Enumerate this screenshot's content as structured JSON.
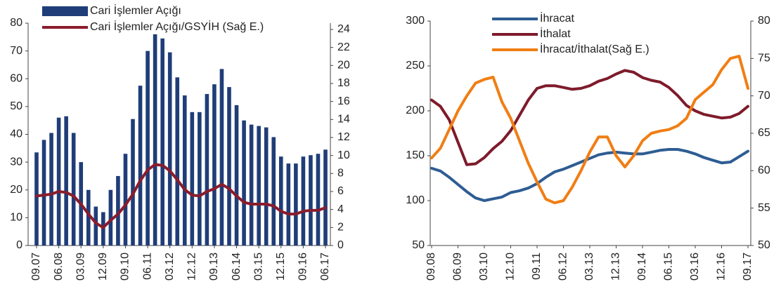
{
  "chart_data": [
    {
      "type": "combo",
      "categories": [
        "09.07",
        null,
        null,
        "06.08",
        null,
        null,
        "03.09",
        null,
        null,
        "12.09",
        null,
        null,
        "09.10",
        null,
        null,
        "06.11",
        null,
        null,
        "03.12",
        null,
        null,
        "12.12",
        null,
        null,
        "09.13",
        null,
        null,
        "06.14",
        null,
        null,
        "03.15",
        null,
        null,
        "12.15",
        null,
        null,
        "09.16",
        null,
        null,
        "06.17"
      ],
      "series": [
        {
          "name": "Cari İşlemler Açığı",
          "type": "bar",
          "color": "#1f3d78",
          "values": [
            33.5,
            38,
            40.5,
            46,
            46.5,
            40.5,
            30,
            20,
            14,
            12,
            20,
            25,
            33,
            45.5,
            57.5,
            70,
            76,
            74.5,
            69.5,
            60.5,
            54,
            48,
            48,
            54.5,
            58,
            63.5,
            57,
            50.5,
            45,
            43.5,
            43,
            42.5,
            39,
            32,
            29.5,
            29.5,
            32,
            32.5,
            33,
            34.5
          ]
        },
        {
          "name": "Cari İşlemler Açığı/GSYİH (Sağ E.)",
          "type": "line",
          "axis": "y2",
          "color": "#8a1c2c",
          "values": [
            5.5,
            5.6,
            5.7,
            6.0,
            5.9,
            5.5,
            4.6,
            3.5,
            2.5,
            2.0,
            2.8,
            3.5,
            4.5,
            5.7,
            7.2,
            8.4,
            9.0,
            8.9,
            8.3,
            7.3,
            6.2,
            5.6,
            5.5,
            6.0,
            6.3,
            6.8,
            6.3,
            5.5,
            4.8,
            4.6,
            4.6,
            4.6,
            4.4,
            3.8,
            3.5,
            3.5,
            3.8,
            3.9,
            3.9,
            4.2
          ]
        }
      ],
      "ylim": [
        0,
        80
      ],
      "yticks": [
        0,
        10,
        20,
        30,
        40,
        50,
        60,
        70,
        80
      ],
      "y2lim": [
        0,
        24.7
      ],
      "y2ticks": [
        0,
        2,
        4,
        6,
        8,
        10,
        12,
        14,
        16,
        18,
        20,
        22,
        24
      ],
      "legend": "upper left"
    },
    {
      "type": "line",
      "categories": [
        "09.08",
        null,
        null,
        "06.09",
        null,
        null,
        "03.10",
        null,
        null,
        "12.10",
        null,
        null,
        "09.11",
        null,
        null,
        "06.12",
        null,
        null,
        "03.13",
        null,
        null,
        "12.13",
        null,
        null,
        "09.14",
        null,
        null,
        "06.15",
        null,
        null,
        "03.16",
        null,
        null,
        "12.16",
        null,
        null,
        "09.17"
      ],
      "series": [
        {
          "name": "İhracat",
          "color": "#2e5d93",
          "values": [
            136,
            133,
            126,
            118,
            110,
            103,
            100,
            102,
            104,
            109,
            111,
            114,
            119,
            126,
            132,
            135,
            139,
            143,
            147,
            151,
            153,
            154,
            153,
            152,
            152,
            154,
            156,
            157,
            157,
            155,
            152,
            148,
            145,
            142,
            143,
            149,
            155
          ]
        },
        {
          "name": "İthalat",
          "color": "#7e1b2b",
          "values": [
            212,
            205,
            190,
            165,
            140,
            141,
            148,
            158,
            166,
            178,
            195,
            212,
            225,
            228,
            228,
            226,
            224,
            225,
            228,
            233,
            236,
            241,
            245,
            243,
            237,
            234,
            232,
            226,
            217,
            206,
            200,
            196,
            194,
            192,
            193,
            197,
            205
          ]
        },
        {
          "name": "İhracat/İthalat(Sağ E.)",
          "axis": "y2",
          "color": "#f07e14",
          "values": [
            61.7,
            63,
            65.5,
            68,
            70,
            71.7,
            72.2,
            72.5,
            69.2,
            67,
            64,
            61,
            58.5,
            56.2,
            55.7,
            56,
            57.8,
            60,
            62.5,
            64.5,
            64.5,
            62,
            60.5,
            62,
            64,
            65,
            65.3,
            65.5,
            66,
            67,
            69.5,
            70.5,
            71.5,
            73.5,
            75,
            75.3,
            71
          ]
        }
      ],
      "ylim": [
        50,
        300
      ],
      "yticks": [
        50,
        100,
        150,
        200,
        250,
        300
      ],
      "y2lim": [
        50,
        80
      ],
      "y2ticks": [
        50,
        55,
        60,
        65,
        70,
        75,
        80
      ],
      "legend": "upper left"
    }
  ]
}
